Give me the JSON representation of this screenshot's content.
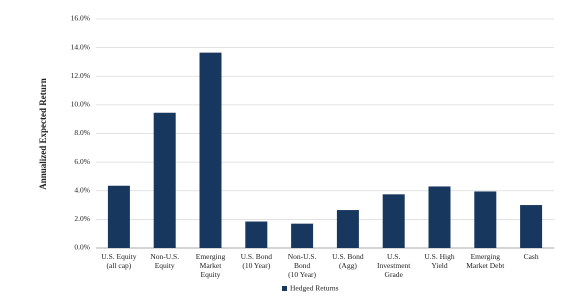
{
  "chart_data": {
    "type": "bar",
    "y_label": "Annualized Expected Return",
    "categories": [
      [
        "U.S. Equity",
        "(all cap)"
      ],
      [
        "Non-U.S.",
        "Equity"
      ],
      [
        "Emerging",
        "Market",
        "Equity"
      ],
      [
        "U.S. Bond",
        "(10 Year)"
      ],
      [
        "Non-U.S.",
        "Bond",
        "(10 Year)"
      ],
      [
        "U.S. Bond",
        "(Agg)"
      ],
      [
        "U.S.",
        "Investment",
        "Grade"
      ],
      [
        "U.S. High",
        "Yield"
      ],
      [
        "Emerging",
        "Market Debt"
      ],
      [
        "Cash"
      ]
    ],
    "series": [
      {
        "name": "Hedged Returns",
        "color": "#17375e",
        "values": [
          4.35,
          9.45,
          13.65,
          1.85,
          1.7,
          2.65,
          3.75,
          4.3,
          3.95,
          3.0
        ]
      }
    ],
    "ylim": [
      0,
      16
    ],
    "yticks": [
      {
        "value": 0,
        "label": "0.0%"
      },
      {
        "value": 2,
        "label": "2.0%"
      },
      {
        "value": 4,
        "label": "4.0%"
      },
      {
        "value": 6,
        "label": "6.0%"
      },
      {
        "value": 8,
        "label": "8.0%"
      },
      {
        "value": 10,
        "label": "10.0%"
      },
      {
        "value": 12,
        "label": "12.0%"
      },
      {
        "value": 14,
        "label": "14.0%"
      },
      {
        "value": 16,
        "label": "16.0%"
      }
    ],
    "grid": true,
    "legend": "bottom"
  }
}
